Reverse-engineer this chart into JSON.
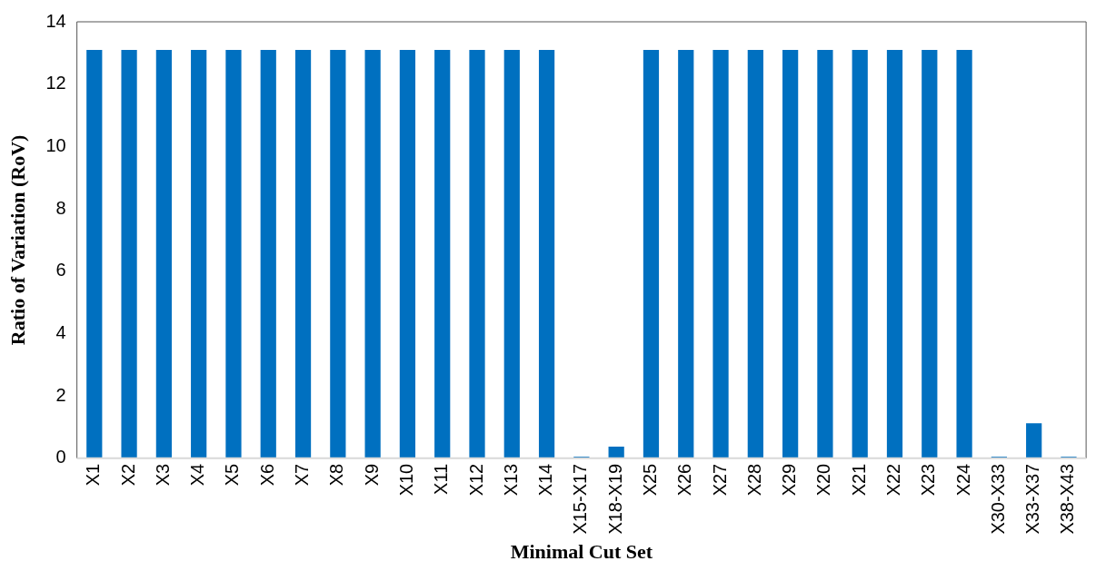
{
  "chart_data": {
    "type": "bar",
    "xlabel": "Minimal Cut Set",
    "ylabel": "Ratio of Variation (RoV)",
    "categories": [
      "X1",
      "X2",
      "X3",
      "X4",
      "X5",
      "X6",
      "X7",
      "X8",
      "X9",
      "X10",
      "X11",
      "X12",
      "X13",
      "X14",
      "X15-X17",
      "X18-X19",
      "X25",
      "X26",
      "X27",
      "X28",
      "X29",
      "X20",
      "X21",
      "X22",
      "X23",
      "X24",
      "X30-X33",
      "X33-X37",
      "X38-X43"
    ],
    "values": [
      13.1,
      13.1,
      13.1,
      13.1,
      13.1,
      13.1,
      13.1,
      13.1,
      13.1,
      13.1,
      13.1,
      13.1,
      13.1,
      13.1,
      0.05,
      0.37,
      13.1,
      13.1,
      13.1,
      13.1,
      13.1,
      13.1,
      13.1,
      13.1,
      13.1,
      13.1,
      0.05,
      1.12,
      0.05
    ],
    "color": "#0070c0",
    "ylim": [
      0,
      14
    ],
    "yticks": [
      0,
      2,
      4,
      6,
      8,
      10,
      12,
      14
    ],
    "grid": false,
    "legend": false
  }
}
